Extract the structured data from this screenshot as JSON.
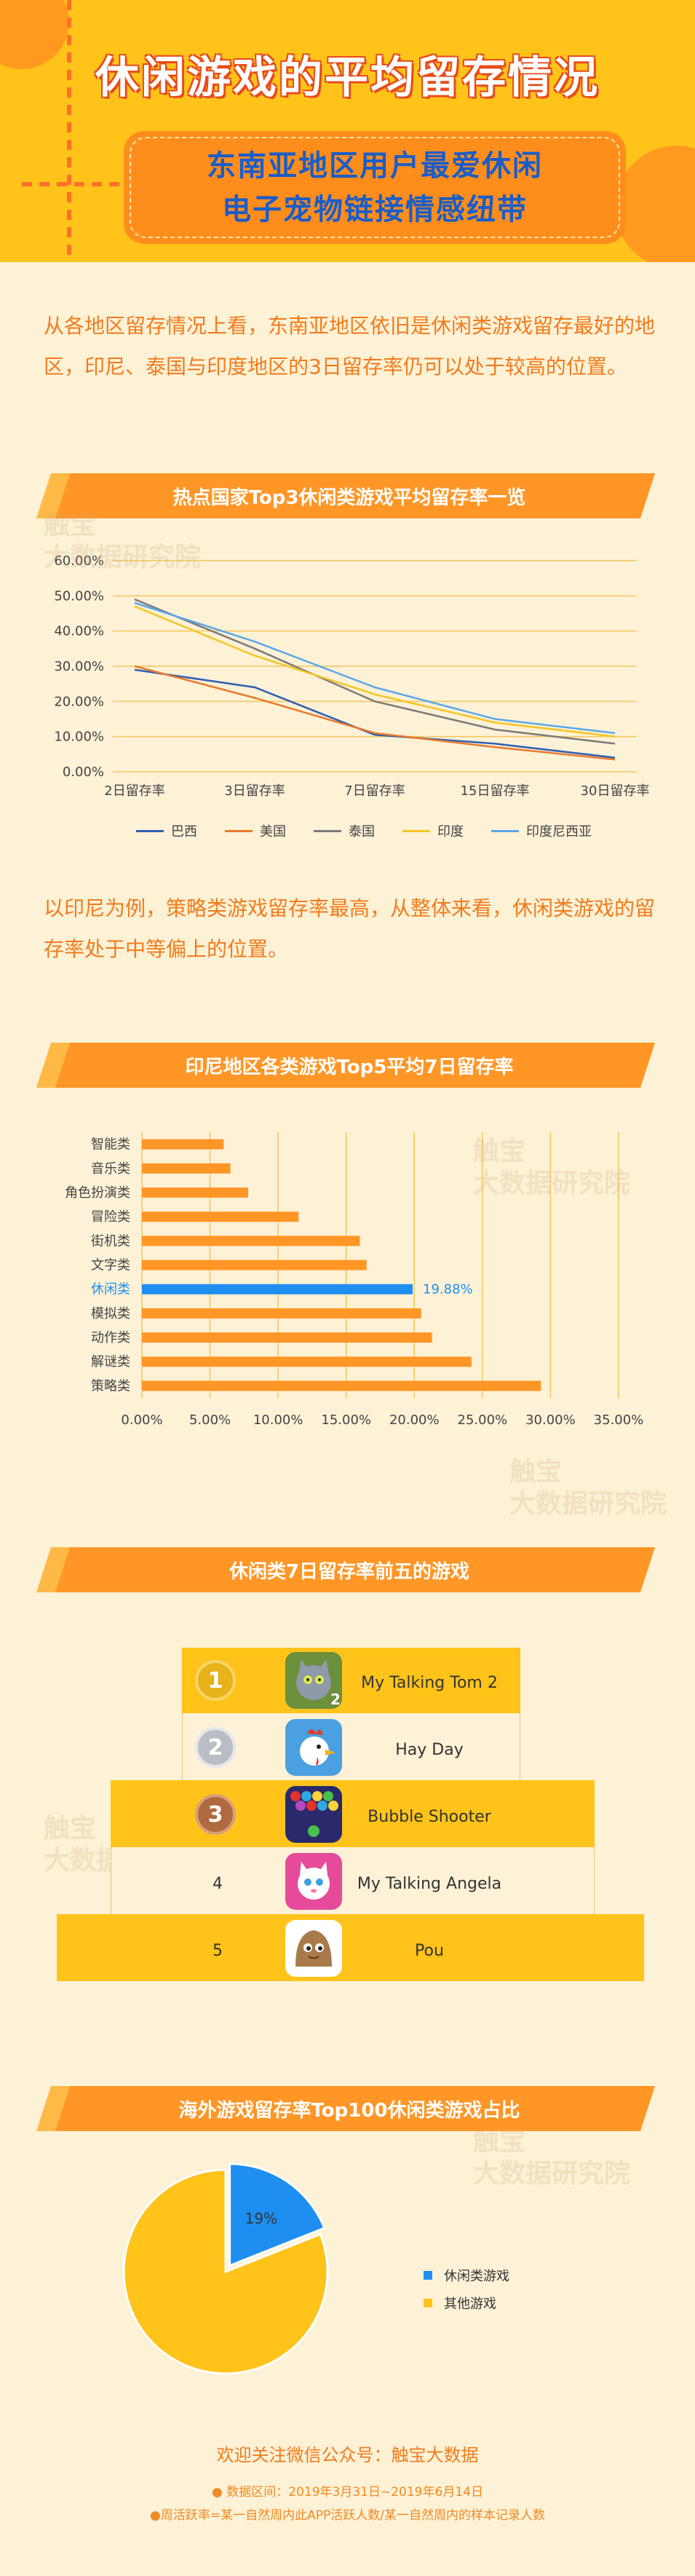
{
  "hero": {
    "title": "休闲游戏的平均留存情况",
    "subtitle_line1": "东南亚地区用户最爱休闲",
    "subtitle_line2": "电子宠物链接情感纽带"
  },
  "intro_text": "从各地区留存情况上看，东南亚地区依旧是休闲类游戏留存最好的地区，印尼、泰国与印度地区的3日留存率仍可以处于较高的位置。",
  "section1": {
    "title": "热点国家Top3休闲类游戏平均留存率一览"
  },
  "middle_text": "以印尼为例，策略类游戏留存率最高，从整体来看，休闲类游戏的留存率处于中等偏上的位置。",
  "section2": {
    "title": "印尼地区各类游戏Top5平均7日留存率"
  },
  "section3": {
    "title": "休闲类7日留存率前五的游戏",
    "games": [
      {
        "rank": "1",
        "name": "My Talking Tom 2",
        "icon": "talking-tom-icon"
      },
      {
        "rank": "2",
        "name": "Hay Day",
        "icon": "hay-day-rooster-icon"
      },
      {
        "rank": "3",
        "name": "Bubble Shooter",
        "icon": "bubble-shooter-icon"
      },
      {
        "rank": "4",
        "name": "My Talking Angela",
        "icon": "talking-angela-icon"
      },
      {
        "rank": "5",
        "name": "Pou",
        "icon": "pou-icon"
      }
    ]
  },
  "section4": {
    "title": "海外游戏留存率Top100休闲类游戏占比"
  },
  "watermark": {
    "line1": "触宝",
    "line2": "大数据研究院"
  },
  "footer": {
    "follow": "欢迎关注微信公众号：触宝大数据",
    "note1": "● 数据区间：2019年3月31日~2019年6月14日",
    "note2": "●周活跃率=某一自然周内此APP活跃人数/某一自然周内的样本记录人数"
  },
  "colors": {
    "orange": "#ff9626",
    "yellow": "#ffc31a",
    "blue": "#1e8ff0",
    "background": "#fdf1d6"
  },
  "chart_data": [
    {
      "type": "line",
      "categories": [
        "2日留存率",
        "3日留存率",
        "7日留存率",
        "15日留存率",
        "30日留存率"
      ],
      "ylim": [
        0,
        60
      ],
      "yticks": [
        "0.00%",
        "10.00%",
        "20.00%",
        "30.00%",
        "40.00%",
        "50.00%",
        "60.00%"
      ],
      "legend_position": "bottom",
      "series": [
        {
          "name": "巴西",
          "color": "#2f5fb3",
          "values": [
            29,
            24,
            10.5,
            8,
            4
          ]
        },
        {
          "name": "美国",
          "color": "#e87a2c",
          "values": [
            30,
            21,
            11,
            7,
            3.5
          ]
        },
        {
          "name": "泰国",
          "color": "#7a7a7a",
          "values": [
            49,
            35,
            20,
            12,
            8
          ]
        },
        {
          "name": "印度",
          "color": "#f5c623",
          "values": [
            47,
            33,
            22,
            14,
            10
          ]
        },
        {
          "name": "印度尼西亚",
          "color": "#5aa8e8",
          "values": [
            48,
            37,
            24,
            15,
            11
          ]
        }
      ]
    },
    {
      "type": "bar",
      "orientation": "horizontal",
      "categories": [
        "智能类",
        "音乐类",
        "角色扮演类",
        "冒险类",
        "街机类",
        "文字类",
        "休闲类",
        "模拟类",
        "动作类",
        "解谜类",
        "策略类"
      ],
      "values": [
        6,
        6.5,
        7.8,
        11.5,
        16,
        16.5,
        19.88,
        20.5,
        21.3,
        24.2,
        29.3
      ],
      "highlight": {
        "category": "休闲类",
        "label": "19.88%",
        "color": "#1e8ff0"
      },
      "bar_color": "#ff9626",
      "xlim": [
        0,
        35
      ],
      "xticks": [
        "0.00%",
        "5.00%",
        "10.00%",
        "15.00%",
        "20.00%",
        "25.00%",
        "30.00%",
        "35.00%"
      ]
    },
    {
      "type": "pie",
      "slices": [
        {
          "label": "休闲类游戏",
          "value": 19,
          "color": "#1e8ff0",
          "display": "19%"
        },
        {
          "label": "其他游戏",
          "value": 81,
          "color": "#ffc31a"
        }
      ]
    }
  ]
}
